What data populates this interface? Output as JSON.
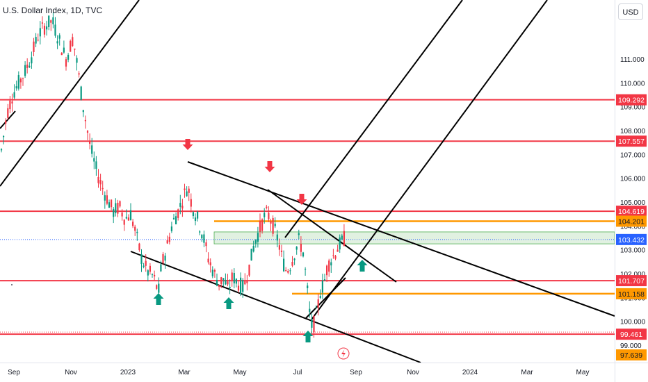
{
  "title": "U.S. Dollar Index, 1D, TVC",
  "currency": "USD",
  "colors": {
    "support_resistance": "#f23645",
    "zone_line": "#ff9800",
    "trendline": "#000000",
    "candle_up": "#089981",
    "candle_down": "#f23645",
    "arrow_down": "#f23645",
    "arrow_up": "#089981",
    "zone_fill": "#c8e6c9",
    "zone_border": "#4caf50",
    "last_price_line": "#2962ff"
  },
  "chart_data": {
    "type": "candlestick",
    "symbol": "U.S. Dollar Index",
    "interval": "1D",
    "source": "TVC",
    "ylim": [
      97.0,
      111.6
    ],
    "y_ticks": [
      "111.000",
      "110.000",
      "109.000",
      "108.000",
      "107.000",
      "106.000",
      "105.000",
      "104.000",
      "103.000",
      "102.000",
      "101.000",
      "100.000",
      "99.000"
    ],
    "x_ticks": [
      "Sep",
      "Nov",
      "2023",
      "Mar",
      "May",
      "Jul",
      "Sep",
      "Nov",
      "2024",
      "Mar",
      "May"
    ],
    "horizontal_levels_red": [
      {
        "label": "109.292",
        "value": 109.292
      },
      {
        "label": "107.557",
        "value": 107.557
      },
      {
        "label": "104.619",
        "value": 104.619
      },
      {
        "label": "101.707",
        "value": 101.707
      },
      {
        "label": "99.461",
        "value": 99.461
      }
    ],
    "horizontal_levels_orange": [
      {
        "label": "104.201",
        "value": 104.201
      },
      {
        "label": "101.158",
        "value": 101.158
      }
    ],
    "last_price": {
      "label": "103.432",
      "value": 103.432
    },
    "zone": {
      "from": 103.25,
      "to": 103.75
    },
    "extra_label": "97.639",
    "down_arrows_count": 3,
    "up_arrows_count": 4,
    "price_path": [
      [
        0,
        106.8
      ],
      [
        10,
        108.7
      ],
      [
        18,
        109.5
      ],
      [
        25,
        109.9
      ],
      [
        35,
        110.4
      ],
      [
        45,
        111.1
      ],
      [
        55,
        112.0
      ],
      [
        65,
        112.4
      ],
      [
        75,
        112.6
      ],
      [
        85,
        111.8
      ],
      [
        95,
        111.0
      ],
      [
        105,
        111.9
      ],
      [
        112,
        110.6
      ],
      [
        118,
        109.3
      ],
      [
        124,
        108.3
      ],
      [
        130,
        107.3
      ],
      [
        138,
        106.4
      ],
      [
        146,
        105.7
      ],
      [
        155,
        105.1
      ],
      [
        163,
        104.6
      ],
      [
        172,
        104.8
      ],
      [
        180,
        104.3
      ],
      [
        188,
        104.5
      ],
      [
        196,
        103.6
      ],
      [
        204,
        102.6
      ],
      [
        212,
        102.1
      ],
      [
        220,
        101.9
      ],
      [
        228,
        101.2
      ],
      [
        232,
        102.3
      ],
      [
        240,
        103.1
      ],
      [
        248,
        104.1
      ],
      [
        256,
        104.6
      ],
      [
        264,
        105.2
      ],
      [
        270,
        105.7
      ],
      [
        276,
        104.9
      ],
      [
        284,
        104.3
      ],
      [
        292,
        103.6
      ],
      [
        300,
        102.6
      ],
      [
        308,
        102.0
      ],
      [
        315,
        101.6
      ],
      [
        322,
        101.8
      ],
      [
        328,
        101.3
      ],
      [
        335,
        101.9
      ],
      [
        342,
        101.6
      ],
      [
        350,
        101.4
      ],
      [
        358,
        102.2
      ],
      [
        366,
        103.3
      ],
      [
        374,
        103.9
      ],
      [
        382,
        104.5
      ],
      [
        388,
        104.4
      ],
      [
        394,
        103.9
      ],
      [
        400,
        103.4
      ],
      [
        406,
        102.6
      ],
      [
        412,
        102.1
      ],
      [
        418,
        102.4
      ],
      [
        424,
        102.9
      ],
      [
        430,
        103.4
      ],
      [
        436,
        102.9
      ],
      [
        441,
        101.6
      ],
      [
        445,
        100.4
      ],
      [
        449,
        99.7
      ],
      [
        453,
        100.0
      ],
      [
        457,
        100.6
      ],
      [
        461,
        101.3
      ],
      [
        466,
        101.6
      ],
      [
        471,
        102.3
      ],
      [
        476,
        102.6
      ],
      [
        481,
        102.8
      ],
      [
        486,
        103.1
      ],
      [
        491,
        103.3
      ],
      [
        496,
        103.5
      ]
    ]
  }
}
